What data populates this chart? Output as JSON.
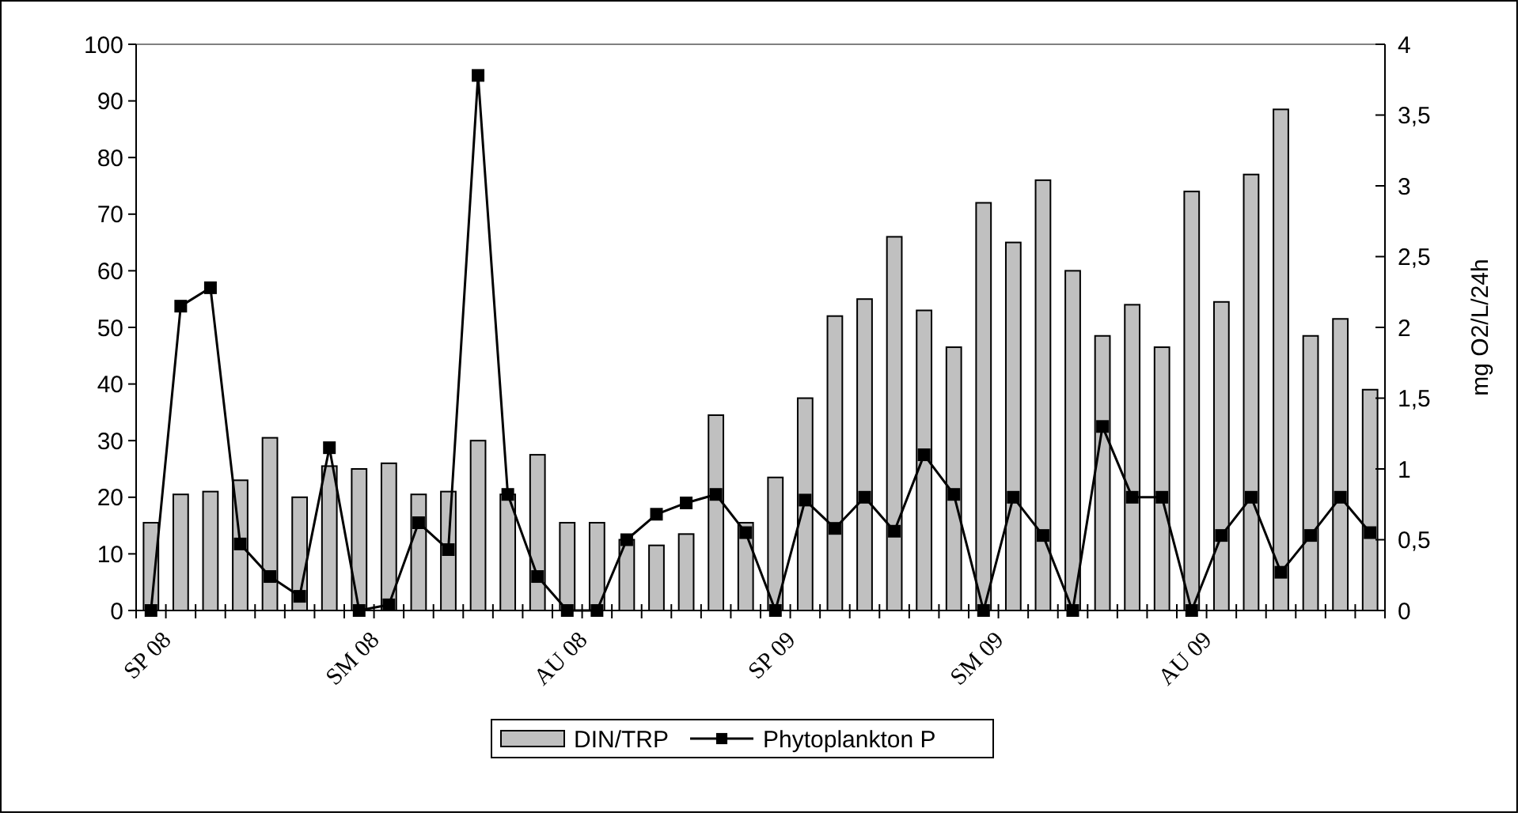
{
  "chart_data": {
    "type": "bar",
    "categories": [
      "SP 08",
      null,
      null,
      null,
      null,
      null,
      null,
      "SM 08",
      null,
      null,
      null,
      null,
      null,
      null,
      "AU 08",
      null,
      null,
      null,
      null,
      null,
      null,
      "SP 09",
      null,
      null,
      null,
      null,
      null,
      null,
      "SM 09",
      null,
      null,
      null,
      null,
      null,
      null,
      "AU 09",
      null,
      null,
      null,
      null,
      null,
      null
    ],
    "series": [
      {
        "name": "DIN/TRP",
        "color": "#c0c0c0",
        "values": [
          15.5,
          20.5,
          21,
          23,
          30.5,
          20,
          25.5,
          25,
          26,
          20.5,
          21,
          30,
          20.5,
          27.5,
          15.5,
          15.5,
          12.5,
          11.5,
          13.5,
          34.5,
          15.5,
          23.5,
          37.5,
          52,
          55,
          66,
          53,
          46.5,
          72,
          65,
          76,
          60,
          48.5,
          54,
          46.5,
          74,
          54.5,
          77,
          88.5,
          48.5,
          51.5,
          39
        ]
      },
      {
        "name": "Phytoplankton P",
        "type": "line",
        "axis": "y2",
        "color": "#000000",
        "marker": "square",
        "values": [
          0,
          2.15,
          2.28,
          0.47,
          0.24,
          0.1,
          1.15,
          0,
          0.04,
          0.62,
          0.43,
          3.78,
          0.82,
          0.24,
          0,
          0,
          0.5,
          0.68,
          0.76,
          0.82,
          0.55,
          0,
          0.78,
          0.58,
          0.8,
          0.56,
          1.1,
          0.82,
          0,
          0.8,
          0.53,
          0,
          1.3,
          0.8,
          0.8,
          0,
          0.53,
          0.8,
          0.27,
          0.53,
          0.8,
          0.55
        ]
      }
    ],
    "ylim": [
      0,
      100
    ],
    "yticks": [
      0,
      10,
      20,
      30,
      40,
      50,
      60,
      70,
      80,
      90,
      100
    ],
    "y2lim": [
      0,
      4
    ],
    "y2ticks": [
      0,
      {
        "value": 0.5,
        "label": "0,5"
      },
      1,
      {
        "value": 1.5,
        "label": "1,5"
      },
      2,
      {
        "value": 2.5,
        "label": "2,5"
      },
      3,
      {
        "value": 3.5,
        "label": "3,5"
      },
      4
    ],
    "y2label": "mg O2/L/24h",
    "grid": false,
    "legend": "bottom"
  }
}
